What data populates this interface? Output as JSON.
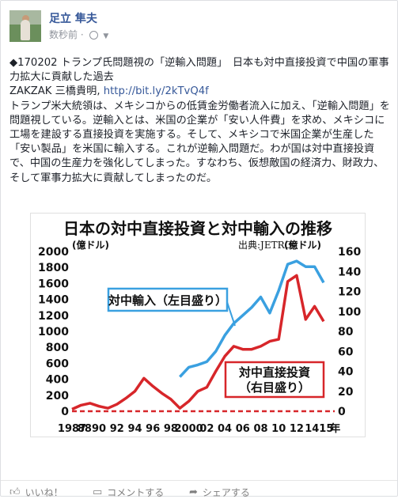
{
  "user": {
    "name": "足立 隼夫",
    "time": "数秒前"
  },
  "post": {
    "line1": "◆170202 トランプ氏問題視の「逆輸入問題」　日本も対中直接投資で中国の軍事力拡大に貢献した過去",
    "source": "ZAKZAK 三橋貴明,",
    "url": "http://bit.ly/2kTvQ4f",
    "body": "トランプ米大統領は、メキシコからの低賃金労働者流入に加え、「逆輸入問題」を問題視している。逆輸入とは、米国の企業が「安い人件費」を求め、メキシコに工場を建設する直接投資を実施する。そして、メキシコで米国企業が生産した「安い製品」を米国に輸入する。これが逆輸入問題だ。わが国は対中直接投資で、中国の生産力を強化してしまった。すなわち、仮想敵国の経済力、財政力、そして軍事力拡大に貢献してしまったのだ。"
  },
  "chart_data": {
    "type": "line",
    "title": "日本の対中直接投資と対中輸入の推移",
    "source_label": "出典:JETRO",
    "left_unit": "(億ドル)",
    "right_unit": "(億ドル)",
    "left_ylim": [
      0,
      2000
    ],
    "right_ylim": [
      0,
      160
    ],
    "left_ticks": [
      "0",
      "200",
      "400",
      "600",
      "800",
      "1000",
      "1200",
      "1400",
      "1600",
      "1800",
      "2000"
    ],
    "right_ticks": [
      "0",
      "20",
      "40",
      "60",
      "80",
      "100",
      "120",
      "140",
      "160"
    ],
    "x_labels": [
      "1987",
      "88",
      "90",
      "92",
      "94",
      "96",
      "98",
      "2000",
      "02",
      "04",
      "06",
      "08",
      "10",
      "12",
      "1415",
      "年"
    ],
    "series": [
      {
        "name": "対中輸入（左目盛り）",
        "axis": "left",
        "color": "#3aa0e0",
        "x": [
          1999,
          2000,
          2001,
          2002,
          2003,
          2004,
          2005,
          2006,
          2007,
          2008,
          2009,
          2010,
          2011,
          2012,
          2013,
          2014,
          2015
        ],
        "y": [
          430,
          550,
          580,
          620,
          750,
          950,
          1100,
          1200,
          1300,
          1430,
          1230,
          1510,
          1840,
          1880,
          1810,
          1810,
          1610
        ]
      },
      {
        "name": "対中直接投資（右目盛り）",
        "axis": "right",
        "color": "#d7262a",
        "x": [
          1987,
          1988,
          1989,
          1990,
          1991,
          1992,
          1993,
          1994,
          1995,
          1996,
          1997,
          1998,
          1999,
          2000,
          2001,
          2002,
          2003,
          2004,
          2005,
          2006,
          2007,
          2008,
          2009,
          2010,
          2011,
          2012,
          2013,
          2014,
          2015
        ],
        "y": [
          2,
          6,
          8,
          5,
          3,
          7,
          13,
          20,
          33,
          25,
          18,
          12,
          3,
          10,
          20,
          24,
          40,
          55,
          65,
          62,
          62,
          65,
          70,
          72,
          130,
          136,
          92,
          105,
          90
        ]
      }
    ]
  },
  "actions": {
    "like": "いいね！",
    "comment": "コメントする",
    "share": "シェアする"
  }
}
